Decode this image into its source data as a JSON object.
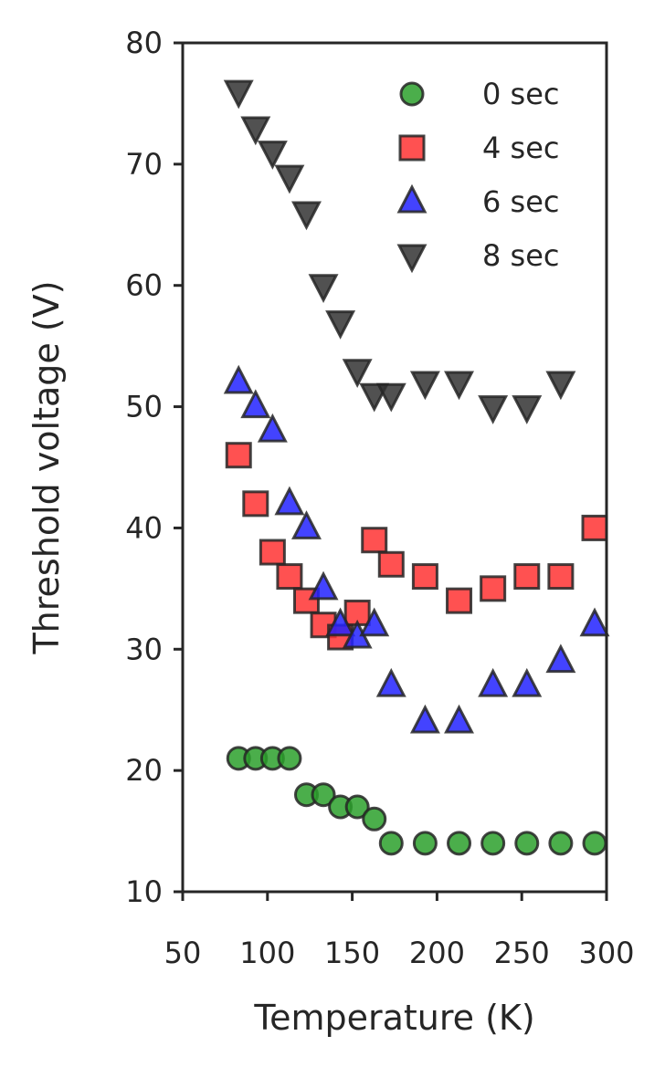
{
  "chart_data": {
    "type": "scatter",
    "xlabel": "Temperature (K)",
    "ylabel": "Threshold voltage (V)",
    "xlim": [
      50,
      300
    ],
    "ylim": [
      10,
      80
    ],
    "xticks": [
      50,
      100,
      150,
      200,
      250,
      300
    ],
    "yticks": [
      10,
      20,
      30,
      40,
      50,
      60,
      70,
      80
    ],
    "grid": false,
    "legend_position": "top-right",
    "series": [
      {
        "name": "0 sec",
        "marker": "circle",
        "color": "#2ca02c",
        "x": [
          83,
          93,
          103,
          113,
          123,
          133,
          143,
          153,
          163,
          173,
          193,
          213,
          233,
          253,
          273,
          293
        ],
        "y": [
          21,
          21,
          21,
          21,
          18,
          18,
          17,
          17,
          16,
          14,
          14,
          14,
          14,
          14,
          14,
          14
        ]
      },
      {
        "name": "4 sec",
        "marker": "square",
        "color": "#ff3333",
        "x": [
          83,
          93,
          103,
          113,
          123,
          133,
          143,
          153,
          163,
          173,
          193,
          213,
          233,
          253,
          273,
          293
        ],
        "y": [
          46,
          42,
          38,
          36,
          34,
          32,
          31,
          33,
          39,
          37,
          36,
          34,
          35,
          36,
          36,
          40
        ]
      },
      {
        "name": "6 sec",
        "marker": "triangle-up",
        "color": "#2222ff",
        "x": [
          83,
          93,
          103,
          113,
          123,
          133,
          143,
          153,
          163,
          173,
          193,
          213,
          233,
          253,
          273,
          293
        ],
        "y": [
          52,
          50,
          48,
          42,
          40,
          35,
          32,
          31,
          32,
          27,
          24,
          24,
          27,
          27,
          29,
          32
        ]
      },
      {
        "name": "8 sec",
        "marker": "triangle-down",
        "color": "#333333",
        "x": [
          83,
          93,
          103,
          113,
          123,
          133,
          143,
          153,
          163,
          173,
          193,
          213,
          233,
          253,
          273
        ],
        "y": [
          76,
          73,
          71,
          69,
          66,
          60,
          57,
          53,
          51,
          51,
          52,
          52,
          50,
          50,
          52
        ]
      }
    ]
  }
}
